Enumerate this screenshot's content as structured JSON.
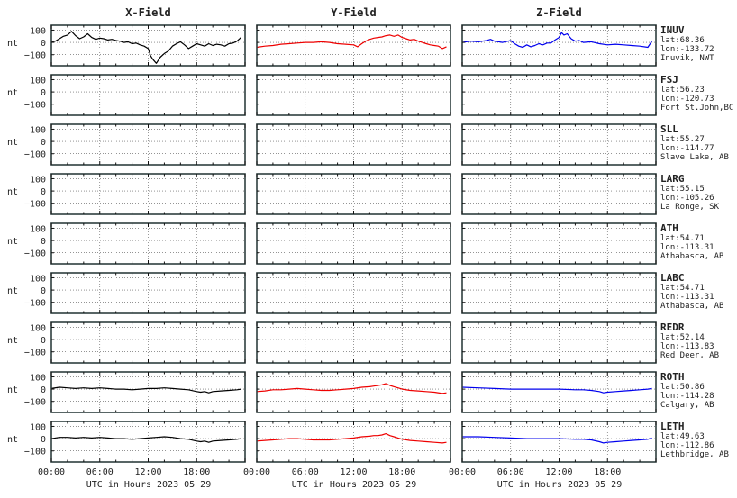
{
  "columns": [
    {
      "title": "X-Field",
      "color": "#000000"
    },
    {
      "title": "Y-Field",
      "color": "#ee0000"
    },
    {
      "title": "Z-Field",
      "color": "#0000ee"
    }
  ],
  "ylabel": "nt",
  "xlabel": "UTC in Hours  2023 05 29",
  "ylim": [
    -190,
    140
  ],
  "yticks": [
    "100",
    "0",
    "−100"
  ],
  "yticks_values": [
    100,
    0,
    -100
  ],
  "xlim": [
    0,
    24
  ],
  "xticks": [
    "00:00",
    "06:00",
    "12:00",
    "18:00"
  ],
  "xticks_values": [
    0,
    6,
    12,
    18
  ],
  "stations": [
    {
      "code": "INUV",
      "lat": "lat:68.36",
      "lon": "lon:-133.72",
      "place": "Inuvik, NWT"
    },
    {
      "code": "FSJ",
      "lat": "lat:56.23",
      "lon": "lon:-120.73",
      "place": "Fort St.John,BC"
    },
    {
      "code": "SLL",
      "lat": "lat:55.27",
      "lon": "lon:-114.77",
      "place": "Slave Lake, AB"
    },
    {
      "code": "LARG",
      "lat": "lat:55.15",
      "lon": "lon:-105.26",
      "place": "La Ronge, SK"
    },
    {
      "code": "ATH",
      "lat": "lat:54.71",
      "lon": "lon:-113.31",
      "place": "Athabasca, AB"
    },
    {
      "code": "LABC",
      "lat": "lat:54.71",
      "lon": "lon:-113.31",
      "place": "Athabasca, AB"
    },
    {
      "code": "REDR",
      "lat": "lat:52.14",
      "lon": "lon:-113.83",
      "place": "Red Deer, AB"
    },
    {
      "code": "ROTH",
      "lat": "lat:50.86",
      "lon": "lon:-114.28",
      "place": "Calgary, AB"
    },
    {
      "code": "LETH",
      "lat": "lat:49.63",
      "lon": "lon:-112.86",
      "place": "Lethbridge, AB"
    }
  ],
  "chart_data": {
    "type": "line",
    "x_unit": "hours UTC",
    "panels": [
      {
        "station": "INUV",
        "series": [
          {
            "name": "X-Field",
            "x": [
              0,
              0.5,
              1,
              1.5,
              2,
              2.5,
              3,
              3.5,
              4,
              4.5,
              5,
              5.5,
              6,
              6.5,
              7,
              7.5,
              8,
              8.5,
              9,
              9.5,
              10,
              10.5,
              11,
              11.5,
              12,
              12.3,
              12.6,
              13,
              13.5,
              14,
              14.5,
              15,
              15.5,
              16,
              16.5,
              17,
              17.5,
              18,
              18.5,
              19,
              19.5,
              20,
              20.5,
              21,
              21.5,
              22,
              22.5,
              23,
              23.5
            ],
            "y": [
              5,
              10,
              30,
              50,
              60,
              90,
              55,
              30,
              45,
              70,
              40,
              25,
              35,
              30,
              20,
              25,
              15,
              10,
              0,
              5,
              -10,
              -5,
              -20,
              -30,
              -50,
              -110,
              -140,
              -170,
              -120,
              -90,
              -70,
              -30,
              -10,
              5,
              -20,
              -50,
              -30,
              -10,
              -20,
              -30,
              -10,
              -25,
              -15,
              -20,
              -30,
              -10,
              -5,
              10,
              40
            ]
          },
          {
            "name": "Y-Field",
            "x": [
              0,
              1,
              2,
              3,
              4,
              5,
              6,
              7,
              8,
              9,
              10,
              11,
              12,
              12.5,
              13,
              13.5,
              14,
              14.5,
              15,
              15.5,
              16,
              16.5,
              17,
              17.5,
              18,
              18.5,
              19,
              19.5,
              20,
              20.5,
              21,
              21.5,
              22,
              22.5,
              23,
              23.5
            ],
            "y": [
              -40,
              -30,
              -25,
              -15,
              -10,
              -5,
              0,
              0,
              5,
              0,
              -10,
              -15,
              -20,
              -35,
              -10,
              10,
              25,
              35,
              40,
              45,
              55,
              60,
              50,
              60,
              40,
              30,
              20,
              25,
              10,
              0,
              -10,
              -20,
              -25,
              -30,
              -50,
              -35
            ]
          },
          {
            "name": "Z-Field",
            "x": [
              0,
              1,
              2,
              3,
              3.5,
              4,
              5,
              6,
              6.5,
              7,
              7.5,
              8,
              8.5,
              9,
              9.5,
              10,
              10.5,
              11,
              11.5,
              12,
              12.3,
              12.6,
              13,
              13.5,
              14,
              14.5,
              15,
              16,
              17,
              18,
              19,
              20,
              21,
              22,
              23,
              23.5
            ],
            "y": [
              0,
              10,
              5,
              15,
              25,
              10,
              0,
              15,
              -10,
              -30,
              -40,
              -20,
              -35,
              -25,
              -10,
              -20,
              -5,
              -5,
              20,
              40,
              80,
              60,
              70,
              30,
              10,
              15,
              0,
              5,
              -10,
              -20,
              -15,
              -20,
              -25,
              -30,
              -40,
              10
            ]
          }
        ]
      },
      {
        "station": "FSJ",
        "series": []
      },
      {
        "station": "SLL",
        "series": []
      },
      {
        "station": "LARG",
        "series": []
      },
      {
        "station": "ATH",
        "series": []
      },
      {
        "station": "LABC",
        "series": []
      },
      {
        "station": "REDR",
        "series": []
      },
      {
        "station": "ROTH",
        "series": [
          {
            "name": "X-Field",
            "x": [
              0,
              1,
              2,
              3,
              4,
              5,
              6,
              7,
              8,
              9,
              10,
              11,
              12,
              13,
              14,
              15,
              16,
              17,
              18,
              18.5,
              19,
              19.5,
              20,
              21,
              22,
              23,
              23.5
            ],
            "y": [
              5,
              15,
              10,
              5,
              10,
              5,
              10,
              5,
              0,
              0,
              -5,
              0,
              5,
              5,
              10,
              5,
              0,
              -5,
              -20,
              -25,
              -20,
              -30,
              -20,
              -15,
              -10,
              -5,
              0
            ]
          },
          {
            "name": "Y-Field",
            "x": [
              0,
              1,
              2,
              3,
              4,
              5,
              6,
              7,
              8,
              9,
              10,
              11,
              12,
              13,
              14,
              14.5,
              15,
              15.5,
              16,
              16.5,
              17,
              17.5,
              18,
              19,
              20,
              21,
              22,
              23,
              23.5
            ],
            "y": [
              -20,
              -15,
              -5,
              -5,
              0,
              5,
              0,
              -5,
              -10,
              -10,
              -5,
              0,
              5,
              15,
              20,
              25,
              30,
              35,
              45,
              30,
              20,
              10,
              0,
              -10,
              -15,
              -20,
              -25,
              -35,
              -30
            ]
          },
          {
            "name": "Z-Field",
            "x": [
              0,
              2,
              4,
              6,
              8,
              10,
              12,
              14,
              15,
              16,
              17,
              17.5,
              18,
              19,
              20,
              21,
              22,
              23,
              23.5
            ],
            "y": [
              15,
              10,
              5,
              0,
              0,
              0,
              0,
              -5,
              -5,
              -10,
              -20,
              -30,
              -25,
              -20,
              -15,
              -10,
              -5,
              0,
              5
            ]
          }
        ]
      },
      {
        "station": "LETH",
        "series": [
          {
            "name": "X-Field",
            "x": [
              0,
              1,
              2,
              3,
              4,
              5,
              6,
              7,
              8,
              9,
              10,
              11,
              12,
              13,
              14,
              15,
              16,
              17,
              18,
              18.5,
              19,
              19.5,
              20,
              21,
              22,
              23,
              23.5
            ],
            "y": [
              0,
              10,
              10,
              5,
              10,
              5,
              10,
              5,
              0,
              0,
              -5,
              0,
              5,
              10,
              15,
              10,
              0,
              -5,
              -20,
              -25,
              -20,
              -30,
              -20,
              -15,
              -10,
              -5,
              0
            ]
          },
          {
            "name": "Y-Field",
            "x": [
              0,
              1,
              2,
              3,
              4,
              5,
              6,
              7,
              8,
              9,
              10,
              11,
              12,
              13,
              14,
              14.5,
              15,
              15.5,
              16,
              16.5,
              17,
              17.5,
              18,
              19,
              20,
              21,
              22,
              23,
              23.5
            ],
            "y": [
              -20,
              -15,
              -10,
              -5,
              0,
              0,
              -5,
              -10,
              -10,
              -10,
              -5,
              0,
              5,
              15,
              20,
              25,
              25,
              30,
              40,
              25,
              15,
              5,
              -5,
              -15,
              -20,
              -25,
              -30,
              -35,
              -30
            ]
          },
          {
            "name": "Z-Field",
            "x": [
              0,
              2,
              4,
              6,
              8,
              10,
              12,
              14,
              15,
              16,
              17,
              17.5,
              18,
              19,
              20,
              21,
              22,
              23,
              23.5
            ],
            "y": [
              15,
              15,
              10,
              5,
              0,
              0,
              0,
              -5,
              -5,
              -10,
              -25,
              -35,
              -30,
              -25,
              -20,
              -15,
              -10,
              -5,
              5
            ]
          }
        ]
      }
    ]
  }
}
